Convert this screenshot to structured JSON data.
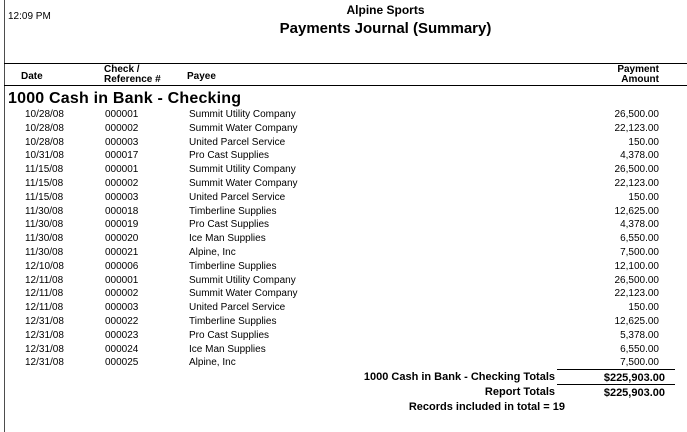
{
  "header": {
    "time": "12:09 PM",
    "company": "Alpine Sports",
    "title": "Payments Journal (Summary)"
  },
  "table": {
    "columns": {
      "date": "Date",
      "check_line1": "Check /",
      "check_line2": "Reference #",
      "payee": "Payee",
      "amount_line1": "Payment",
      "amount_line2": "Amount"
    },
    "section_title": "1000 Cash in Bank - Checking",
    "rows": [
      {
        "date": "10/28/08",
        "check": "000001",
        "payee": "Summit Utility Company",
        "amount": "26,500.00"
      },
      {
        "date": "10/28/08",
        "check": "000002",
        "payee": "Summit Water Company",
        "amount": "22,123.00"
      },
      {
        "date": "10/28/08",
        "check": "000003",
        "payee": "United Parcel Service",
        "amount": "150.00"
      },
      {
        "date": "10/31/08",
        "check": "000017",
        "payee": "Pro Cast Supplies",
        "amount": "4,378.00"
      },
      {
        "date": "11/15/08",
        "check": "000001",
        "payee": "Summit Utility Company",
        "amount": "26,500.00"
      },
      {
        "date": "11/15/08",
        "check": "000002",
        "payee": "Summit Water Company",
        "amount": "22,123.00"
      },
      {
        "date": "11/15/08",
        "check": "000003",
        "payee": "United Parcel Service",
        "amount": "150.00"
      },
      {
        "date": "11/30/08",
        "check": "000018",
        "payee": "Timberline Supplies",
        "amount": "12,625.00"
      },
      {
        "date": "11/30/08",
        "check": "000019",
        "payee": "Pro Cast Supplies",
        "amount": "4,378.00"
      },
      {
        "date": "11/30/08",
        "check": "000020",
        "payee": "Ice Man Supplies",
        "amount": "6,550.00"
      },
      {
        "date": "11/30/08",
        "check": "000021",
        "payee": "Alpine, Inc",
        "amount": "7,500.00"
      },
      {
        "date": "12/10/08",
        "check": "000006",
        "payee": "Timberline Supplies",
        "amount": "12,100.00"
      },
      {
        "date": "12/11/08",
        "check": "000001",
        "payee": "Summit Utility Company",
        "amount": "26,500.00"
      },
      {
        "date": "12/11/08",
        "check": "000002",
        "payee": "Summit Water Company",
        "amount": "22,123.00"
      },
      {
        "date": "12/11/08",
        "check": "000003",
        "payee": "United Parcel Service",
        "amount": "150.00"
      },
      {
        "date": "12/31/08",
        "check": "000022",
        "payee": "Timberline Supplies",
        "amount": "12,625.00"
      },
      {
        "date": "12/31/08",
        "check": "000023",
        "payee": "Pro Cast Supplies",
        "amount": "5,378.00"
      },
      {
        "date": "12/31/08",
        "check": "000024",
        "payee": "Ice Man Supplies",
        "amount": "6,550.00"
      },
      {
        "date": "12/31/08",
        "check": "000025",
        "payee": "Alpine, Inc",
        "amount": "7,500.00"
      }
    ]
  },
  "totals": {
    "section": {
      "label": "1000 Cash in Bank - Checking Totals",
      "amount": "$225,903.00"
    },
    "report": {
      "label": "Report Totals",
      "amount": "$225,903.00"
    },
    "records_note": "Records included in total = 19"
  }
}
